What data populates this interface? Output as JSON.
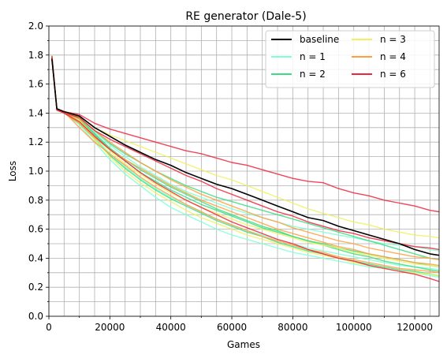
{
  "chart_data": {
    "type": "line",
    "title": "RE generator (Dale-5)",
    "xlabel": "Games",
    "ylabel": "Loss",
    "xlim": [
      0,
      128000
    ],
    "ylim": [
      0.0,
      2.0
    ],
    "x_ticks": [
      0,
      20000,
      40000,
      60000,
      80000,
      100000,
      120000
    ],
    "x_tick_labels": [
      "0",
      "20000",
      "40000",
      "60000",
      "80000",
      "100000",
      "120000"
    ],
    "y_ticks": [
      0.0,
      0.2,
      0.4,
      0.6,
      0.8,
      1.0,
      1.2,
      1.4,
      1.6,
      1.8,
      2.0
    ],
    "y_tick_labels": [
      "0.0",
      "0.2",
      "0.4",
      "0.6",
      "0.8",
      "1.0",
      "1.2",
      "1.4",
      "1.6",
      "1.8",
      "2.0"
    ],
    "grid": true,
    "legend_position": "top-right",
    "legend_columns": 2,
    "legend": [
      {
        "label": "baseline",
        "color": "#000000"
      },
      {
        "label": "n = 1",
        "color": "#7fffd4"
      },
      {
        "label": "n = 2",
        "color": "#3ddc84"
      },
      {
        "label": "n = 3",
        "color": "#f0f060"
      },
      {
        "label": "n = 4",
        "color": "#ffa040"
      },
      {
        "label": "n = 6",
        "color": "#f0243c"
      }
    ],
    "x": [
      1000,
      2600,
      5000,
      10000,
      15000,
      20000,
      25000,
      30000,
      35000,
      40000,
      45000,
      50000,
      55000,
      60000,
      65000,
      70000,
      75000,
      80000,
      85000,
      90000,
      95000,
      100000,
      105000,
      110000,
      115000,
      120000,
      125000,
      128000
    ],
    "series": [
      {
        "group": "baseline",
        "color": "#000000",
        "values": [
          1.77,
          1.43,
          1.41,
          1.38,
          1.3,
          1.24,
          1.18,
          1.13,
          1.08,
          1.04,
          0.99,
          0.95,
          0.91,
          0.88,
          0.84,
          0.8,
          0.76,
          0.72,
          0.68,
          0.66,
          0.62,
          0.59,
          0.56,
          0.53,
          0.5,
          0.46,
          0.43,
          0.42
        ]
      },
      {
        "group": "n = 1",
        "color": "#7fffd4",
        "values": [
          1.8,
          1.43,
          1.4,
          1.32,
          1.2,
          1.08,
          0.98,
          0.9,
          0.82,
          0.75,
          0.7,
          0.65,
          0.6,
          0.56,
          0.53,
          0.5,
          0.47,
          0.44,
          0.42,
          0.4,
          0.38,
          0.36,
          0.34,
          0.33,
          0.31,
          0.3,
          0.28,
          0.27
        ]
      },
      {
        "group": "n = 1",
        "color": "#7fffd4",
        "values": [
          1.78,
          1.42,
          1.41,
          1.36,
          1.27,
          1.18,
          1.1,
          1.03,
          0.97,
          0.91,
          0.86,
          0.82,
          0.78,
          0.74,
          0.71,
          0.68,
          0.65,
          0.62,
          0.6,
          0.58,
          0.56,
          0.54,
          0.52,
          0.5,
          0.49,
          0.48,
          0.46,
          0.45
        ]
      },
      {
        "group": "n = 1",
        "color": "#7fffd4",
        "values": [
          1.79,
          1.43,
          1.4,
          1.34,
          1.23,
          1.12,
          1.03,
          0.95,
          0.88,
          0.82,
          0.77,
          0.72,
          0.67,
          0.63,
          0.59,
          0.56,
          0.53,
          0.5,
          0.47,
          0.45,
          0.43,
          0.41,
          0.39,
          0.37,
          0.35,
          0.34,
          0.33,
          0.32
        ]
      },
      {
        "group": "n = 2",
        "color": "#3ddc84",
        "values": [
          1.78,
          1.42,
          1.41,
          1.37,
          1.28,
          1.19,
          1.12,
          1.06,
          1.0,
          0.95,
          0.9,
          0.86,
          0.82,
          0.79,
          0.76,
          0.73,
          0.7,
          0.67,
          0.64,
          0.61,
          0.58,
          0.55,
          0.52,
          0.49,
          0.46,
          0.43,
          0.4,
          0.39
        ]
      },
      {
        "group": "n = 2",
        "color": "#3ddc84",
        "values": [
          1.79,
          1.43,
          1.4,
          1.33,
          1.22,
          1.11,
          1.02,
          0.94,
          0.87,
          0.81,
          0.76,
          0.71,
          0.66,
          0.62,
          0.58,
          0.55,
          0.51,
          0.48,
          0.45,
          0.43,
          0.4,
          0.38,
          0.36,
          0.34,
          0.32,
          0.31,
          0.29,
          0.28
        ]
      },
      {
        "group": "n = 2",
        "color": "#3ddc84",
        "values": [
          1.78,
          1.42,
          1.4,
          1.35,
          1.25,
          1.15,
          1.07,
          0.99,
          0.93,
          0.87,
          0.82,
          0.77,
          0.73,
          0.69,
          0.65,
          0.61,
          0.58,
          0.55,
          0.52,
          0.5,
          0.47,
          0.45,
          0.43,
          0.41,
          0.39,
          0.37,
          0.35,
          0.34
        ]
      },
      {
        "group": "n = 2",
        "color": "#3ddc84",
        "values": [
          1.79,
          1.43,
          1.41,
          1.36,
          1.26,
          1.16,
          1.08,
          1.01,
          0.95,
          0.89,
          0.84,
          0.79,
          0.74,
          0.7,
          0.66,
          0.62,
          0.59,
          0.55,
          0.52,
          0.49,
          0.46,
          0.43,
          0.41,
          0.38,
          0.36,
          0.34,
          0.32,
          0.31
        ]
      },
      {
        "group": "n = 3",
        "color": "#f0f060",
        "values": [
          1.77,
          1.43,
          1.41,
          1.38,
          1.3,
          1.25,
          1.21,
          1.17,
          1.13,
          1.09,
          1.05,
          1.01,
          0.97,
          0.94,
          0.9,
          0.86,
          0.82,
          0.78,
          0.74,
          0.71,
          0.68,
          0.65,
          0.63,
          0.6,
          0.58,
          0.56,
          0.55,
          0.54
        ]
      },
      {
        "group": "n = 3",
        "color": "#f0f060",
        "values": [
          1.78,
          1.42,
          1.4,
          1.35,
          1.24,
          1.14,
          1.05,
          0.98,
          0.91,
          0.85,
          0.8,
          0.75,
          0.71,
          0.67,
          0.63,
          0.6,
          0.57,
          0.54,
          0.51,
          0.49,
          0.47,
          0.44,
          0.42,
          0.4,
          0.38,
          0.36,
          0.35,
          0.34
        ]
      },
      {
        "group": "n = 3",
        "color": "#f0f060",
        "values": [
          1.79,
          1.43,
          1.41,
          1.34,
          1.22,
          1.1,
          1.0,
          0.92,
          0.85,
          0.79,
          0.73,
          0.68,
          0.64,
          0.6,
          0.56,
          0.53,
          0.5,
          0.47,
          0.44,
          0.42,
          0.4,
          0.37,
          0.35,
          0.33,
          0.31,
          0.3,
          0.29,
          0.28
        ]
      },
      {
        "group": "n = 4",
        "color": "#ffa040",
        "values": [
          1.78,
          1.43,
          1.4,
          1.33,
          1.23,
          1.15,
          1.08,
          1.02,
          0.96,
          0.9,
          0.85,
          0.8,
          0.76,
          0.72,
          0.68,
          0.64,
          0.6,
          0.57,
          0.54,
          0.51,
          0.48,
          0.46,
          0.43,
          0.41,
          0.39,
          0.37,
          0.36,
          0.35
        ]
      },
      {
        "group": "n = 4",
        "color": "#ffa040",
        "values": [
          1.79,
          1.42,
          1.41,
          1.3,
          1.2,
          1.12,
          1.04,
          0.96,
          0.89,
          0.83,
          0.77,
          0.72,
          0.67,
          0.63,
          0.59,
          0.55,
          0.52,
          0.49,
          0.46,
          0.44,
          0.41,
          0.39,
          0.37,
          0.35,
          0.33,
          0.32,
          0.31,
          0.3
        ]
      },
      {
        "group": "n = 4",
        "color": "#ffa040",
        "values": [
          1.77,
          1.43,
          1.4,
          1.36,
          1.28,
          1.2,
          1.13,
          1.06,
          1.0,
          0.94,
          0.89,
          0.84,
          0.8,
          0.76,
          0.72,
          0.68,
          0.65,
          0.61,
          0.58,
          0.55,
          0.52,
          0.5,
          0.47,
          0.45,
          0.43,
          0.41,
          0.4,
          0.39
        ]
      },
      {
        "group": "n = 6",
        "color": "#f0243c",
        "values": [
          1.78,
          1.43,
          1.41,
          1.39,
          1.33,
          1.29,
          1.26,
          1.23,
          1.2,
          1.17,
          1.14,
          1.12,
          1.09,
          1.06,
          1.04,
          1.01,
          0.98,
          0.95,
          0.93,
          0.92,
          0.88,
          0.85,
          0.83,
          0.8,
          0.78,
          0.76,
          0.73,
          0.72
        ]
      },
      {
        "group": "n = 6",
        "color": "#f0243c",
        "values": [
          1.79,
          1.42,
          1.4,
          1.37,
          1.28,
          1.22,
          1.17,
          1.12,
          1.07,
          1.02,
          0.97,
          0.93,
          0.88,
          0.84,
          0.8,
          0.76,
          0.72,
          0.69,
          0.65,
          0.62,
          0.59,
          0.57,
          0.54,
          0.52,
          0.5,
          0.48,
          0.47,
          0.46
        ]
      },
      {
        "group": "n = 6",
        "color": "#f0243c",
        "values": [
          1.78,
          1.43,
          1.4,
          1.34,
          1.24,
          1.15,
          1.07,
          0.99,
          0.92,
          0.86,
          0.8,
          0.75,
          0.7,
          0.65,
          0.61,
          0.57,
          0.53,
          0.5,
          0.46,
          0.43,
          0.4,
          0.38,
          0.35,
          0.33,
          0.31,
          0.29,
          0.26,
          0.24
        ]
      }
    ]
  }
}
